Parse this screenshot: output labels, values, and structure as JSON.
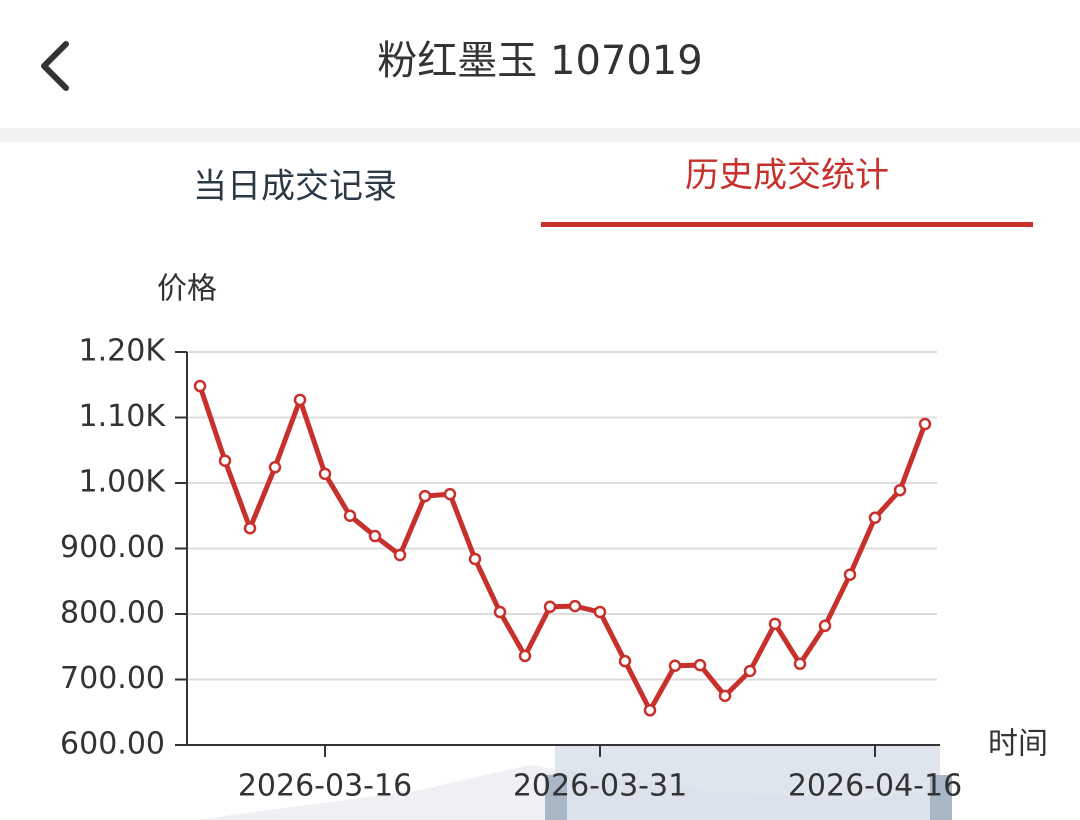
{
  "header": {
    "title": "粉红墨玉 107019"
  },
  "tabs": [
    "当日成交记录",
    "历史成交统计"
  ],
  "chart_data": {
    "type": "line",
    "y_label": "价格",
    "x_label": "时间",
    "categories": [
      null,
      null,
      null,
      null,
      null,
      "2026-03-16",
      null,
      null,
      null,
      null,
      null,
      null,
      null,
      null,
      null,
      null,
      "2026-03-31",
      null,
      null,
      null,
      null,
      null,
      null,
      null,
      null,
      null,
      null,
      "2026-04-16",
      null,
      null
    ],
    "values": [
      1148,
      1034,
      931,
      1024,
      1127,
      1014,
      950,
      919,
      890,
      980,
      983,
      884,
      803,
      736,
      811,
      812,
      803,
      728,
      653,
      721,
      722,
      675,
      713,
      785,
      724,
      782,
      860,
      947,
      989,
      1090
    ],
    "color": "#c8302c",
    "ylim": [
      600,
      1200
    ],
    "yticks": [
      {
        "value": 600,
        "label": "600.00"
      },
      {
        "value": 700,
        "label": "700.00"
      },
      {
        "value": 800,
        "label": "800.00"
      },
      {
        "value": 900,
        "label": "900.00"
      },
      {
        "value": 1000,
        "label": "1.00K"
      },
      {
        "value": 1100,
        "label": "1.10K"
      },
      {
        "value": 1200,
        "label": "1.20K"
      }
    ],
    "grid": true
  }
}
